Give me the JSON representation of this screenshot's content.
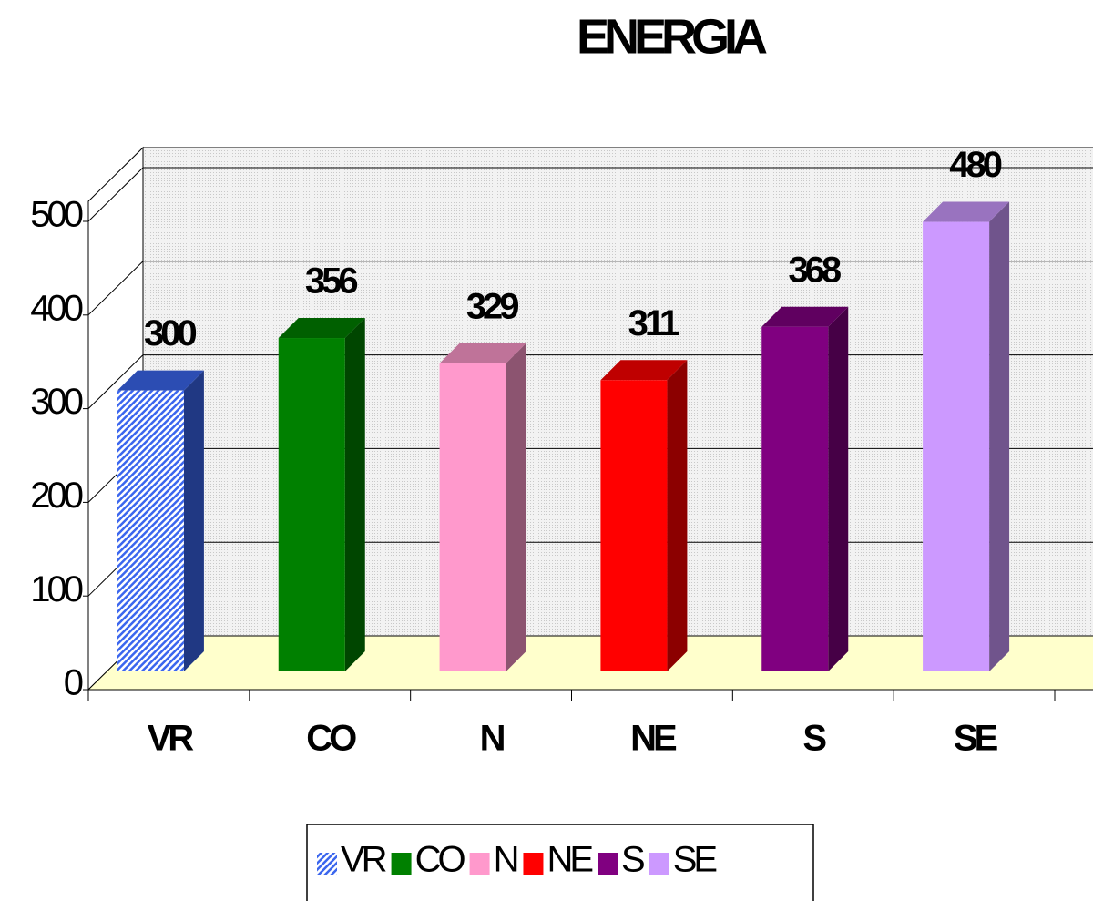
{
  "chart_data": {
    "type": "bar3d",
    "title": "ENERGIA",
    "categories": [
      "VR",
      "CO",
      "N",
      "NE",
      "S",
      "SE"
    ],
    "values": [
      300,
      356,
      329,
      311,
      368,
      480
    ],
    "colors": [
      "#3b66ee",
      "#008000",
      "#ff99cc",
      "#ff0000",
      "#800080",
      "#cc99ff"
    ],
    "hatched": [
      true,
      false,
      false,
      false,
      false,
      false
    ],
    "ylim": [
      0,
      500
    ],
    "yticks": [
      0,
      100,
      200,
      300,
      400,
      500
    ],
    "grid": true,
    "legend": "bottom"
  }
}
